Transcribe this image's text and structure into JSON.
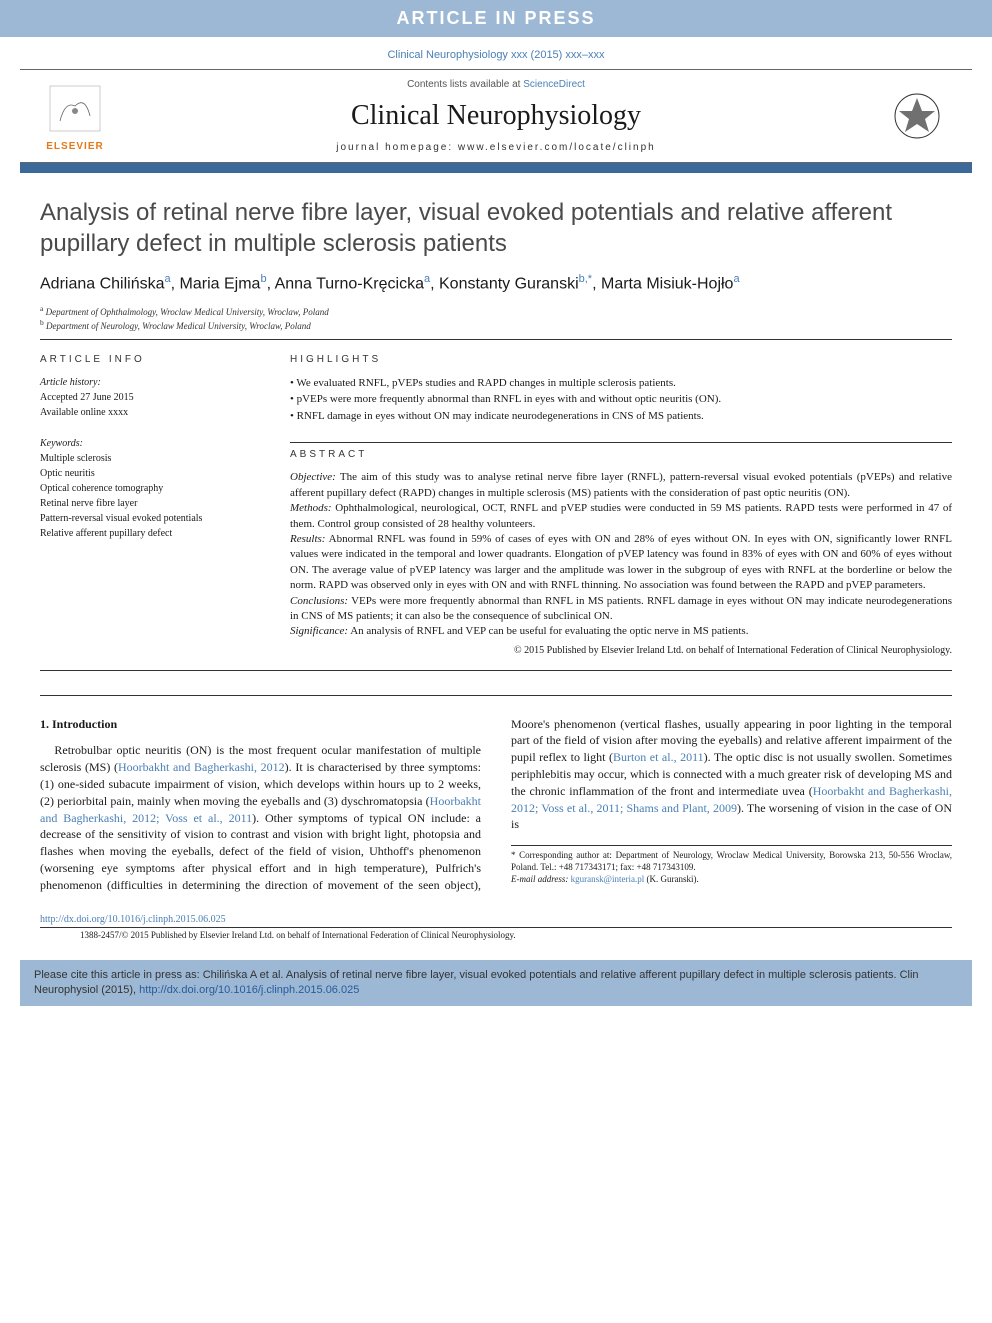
{
  "banner": "ARTICLE IN PRESS",
  "journal_ref": "Clinical Neurophysiology xxx (2015) xxx–xxx",
  "header": {
    "contents_prefix": "Contents lists available at ",
    "contents_link": "ScienceDirect",
    "journal": "Clinical Neurophysiology",
    "homepage": "journal homepage: www.elsevier.com/locate/clinph",
    "publisher": "ELSEVIER"
  },
  "title": "Analysis of retinal nerve fibre layer, visual evoked potentials and relative afferent pupillary defect in multiple sclerosis patients",
  "authors_html": "Adriana Chilińska<sup>a</sup>, Maria Ejma<sup>b</sup>, Anna Turno-Kręcicka<sup>a</sup>, Konstanty Guranski<sup>b,*</sup>, Marta Misiuk-Hojło<sup>a</sup>",
  "affiliations": [
    "a Department of Ophthalmology, Wroclaw Medical University, Wroclaw, Poland",
    "b Department of Neurology, Wroclaw Medical University, Wroclaw, Poland"
  ],
  "article_info": {
    "label": "ARTICLE INFO",
    "history_label": "Article history:",
    "accepted": "Accepted 27 June 2015",
    "available": "Available online xxxx",
    "keywords_label": "Keywords:",
    "keywords": [
      "Multiple sclerosis",
      "Optic neuritis",
      "Optical coherence tomography",
      "Retinal nerve fibre layer",
      "Pattern-reversal visual evoked potentials",
      "Relative afferent pupillary defect"
    ]
  },
  "highlights": {
    "label": "HIGHLIGHTS",
    "items": [
      "We evaluated RNFL, pVEPs studies and RAPD changes in multiple sclerosis patients.",
      "pVEPs were more frequently abnormal than RNFL in eyes with and without optic neuritis (ON).",
      "RNFL damage in eyes without ON may indicate neurodegenerations in CNS of MS patients."
    ]
  },
  "abstract": {
    "label": "ABSTRACT",
    "objective_label": "Objective:",
    "objective": "The aim of this study was to analyse retinal nerve fibre layer (RNFL), pattern-reversal visual evoked potentials (pVEPs) and relative afferent pupillary defect (RAPD) changes in multiple sclerosis (MS) patients with the consideration of past optic neuritis (ON).",
    "methods_label": "Methods:",
    "methods": "Ophthalmological, neurological, OCT, RNFL and pVEP studies were conducted in 59 MS patients. RAPD tests were performed in 47 of them. Control group consisted of 28 healthy volunteers.",
    "results_label": "Results:",
    "results": "Abnormal RNFL was found in 59% of cases of eyes with ON and 28% of eyes without ON. In eyes with ON, significantly lower RNFL values were indicated in the temporal and lower quadrants. Elongation of pVEP latency was found in 83% of eyes with ON and 60% of eyes without ON. The average value of pVEP latency was larger and the amplitude was lower in the subgroup of eyes with RNFL at the borderline or below the norm. RAPD was observed only in eyes with ON and with RNFL thinning. No association was found between the RAPD and pVEP parameters.",
    "conclusions_label": "Conclusions:",
    "conclusions": "VEPs were more frequently abnormal than RNFL in MS patients. RNFL damage in eyes without ON may indicate neurodegenerations in CNS of MS patients; it can also be the consequence of subclinical ON.",
    "significance_label": "Significance:",
    "significance": "An analysis of RNFL and VEP can be useful for evaluating the optic nerve in MS patients.",
    "copyright": "© 2015 Published by Elsevier Ireland Ltd. on behalf of International Federation of Clinical Neurophysiology."
  },
  "intro": {
    "heading": "1. Introduction",
    "p1_a": "Retrobulbar optic neuritis (ON) is the most frequent ocular manifestation of multiple sclerosis (MS) (",
    "p1_ref1": "Hoorbakht and Bagherkashi, 2012",
    "p1_b": "). It is characterised by three symptoms: (1) one-sided subacute impairment of vision, which develops within hours up to 2 weeks, (2) periorbital pain, mainly when moving the eyeballs and (3) dyschromatopsia (",
    "p1_ref2": "Hoorbakht and Bagherkashi, 2012; Voss et al., 2011",
    "p1_c": "). Other symptoms of typical ",
    "p2_a": "ON include: a decrease of the sensitivity of vision to contrast and vision with bright light, photopsia and flashes when moving the eyeballs, defect of the field of vision, Uhthoff's phenomenon (worsening eye symptoms after physical effort and in high temperature), Pulfrich's phenomenon (difficulties in determining the direction of movement of the seen object), Moore's phenomenon (vertical flashes, usually appearing in poor lighting in the temporal part of the field of vision after moving the eyeballs) and relative afferent impairment of the pupil reflex to light (",
    "p2_ref1": "Burton et al., 2011",
    "p2_b": "). The optic disc is not usually swollen. Sometimes periphlebitis may occur, which is connected with a much greater risk of developing MS and the chronic inflammation of the front and intermediate uvea (",
    "p2_ref2": "Hoorbakht and Bagherkashi, 2012; Voss et al., 2011; Shams and Plant, 2009",
    "p2_c": "). The worsening of vision in the case of ON is"
  },
  "footnote": {
    "corr": "* Corresponding author at: Department of Neurology, Wroclaw Medical University, Borowska 213, 50-556 Wroclaw, Poland. Tel.: +48 717343171; fax: +48 717343109.",
    "email_label": "E-mail address:",
    "email": "kguransk@interia.pl",
    "email_name": "(K. Guranski)."
  },
  "doi": "http://dx.doi.org/10.1016/j.clinph.2015.06.025",
  "issn_line": "1388-2457/© 2015 Published by Elsevier Ireland Ltd. on behalf of International Federation of Clinical Neurophysiology.",
  "citation": {
    "text": "Please cite this article in press as: Chilińska A et al. Analysis of retinal nerve fibre layer, visual evoked potentials and relative afferent pupillary defect in multiple sclerosis patients. Clin Neurophysiol (2015), ",
    "link": "http://dx.doi.org/10.1016/j.clinph.2015.06.025"
  },
  "colors": {
    "banner_bg": "#9cb8d4",
    "accent_bar": "#3b6a9a",
    "link": "#4a7fb5",
    "elsevier": "#e67817"
  }
}
